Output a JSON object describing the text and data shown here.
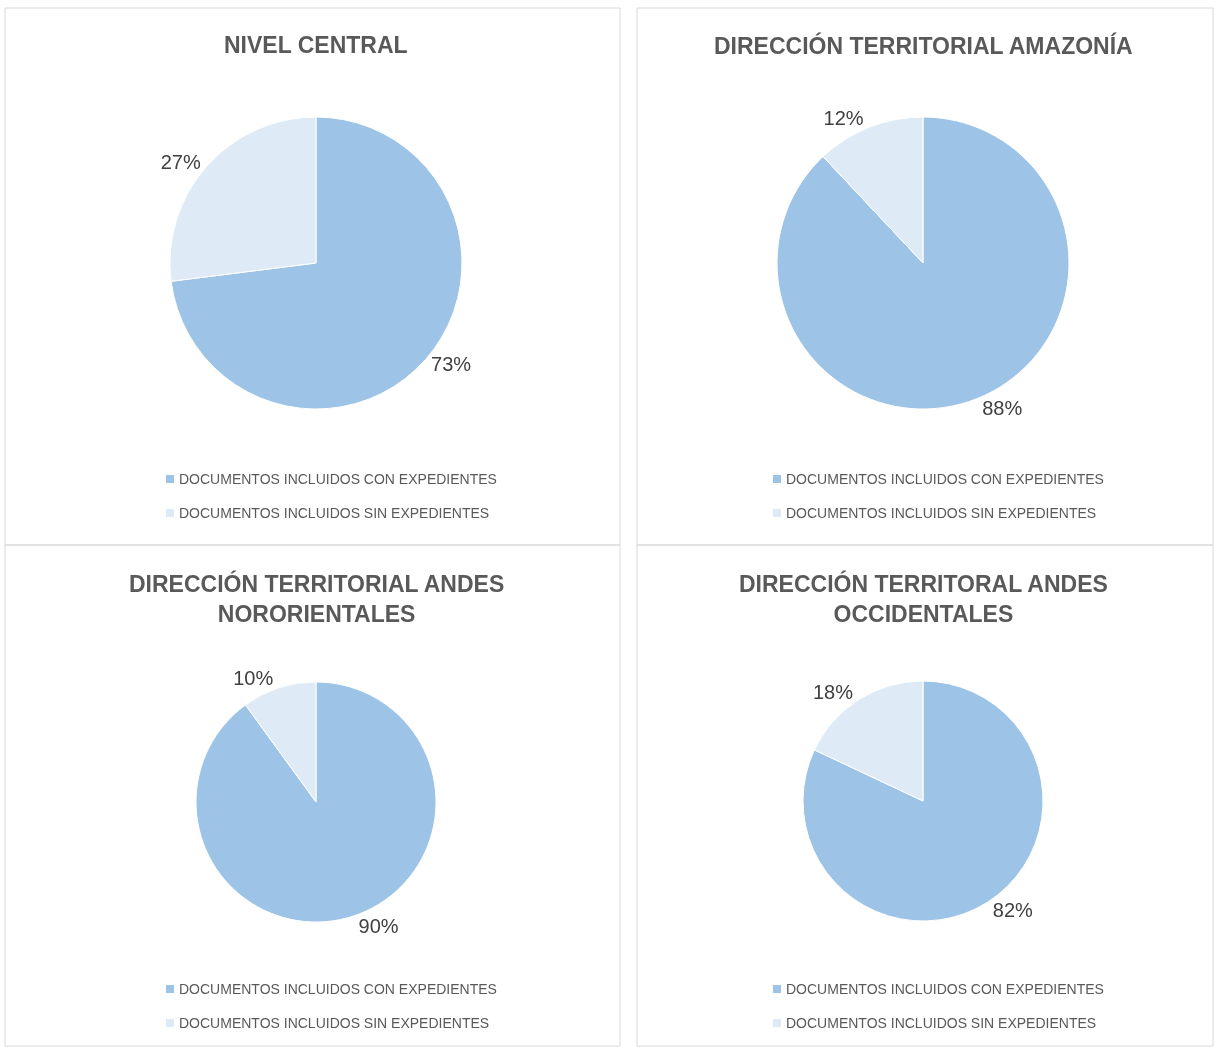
{
  "chart_data": [
    {
      "type": "pie",
      "title": "NIVEL CENTRAL",
      "categories": [
        "DOCUMENTOS INCLUIDOS CON EXPEDIENTES",
        "DOCUMENTOS INCLUIDOS SIN EXPEDIENTES"
      ],
      "values": [
        73,
        27
      ],
      "value_labels": [
        "73%",
        "27%"
      ],
      "colors": [
        "#9dc3e6",
        "#deebf7"
      ],
      "legend": "bottom"
    },
    {
      "type": "pie",
      "title": "DIRECCIÓN TERRITORIAL AMAZONÍA",
      "categories": [
        "DOCUMENTOS INCLUIDOS CON EXPEDIENTES",
        "DOCUMENTOS INCLUIDOS SIN EXPEDIENTES"
      ],
      "values": [
        88,
        12
      ],
      "value_labels": [
        "88%",
        "12%"
      ],
      "colors": [
        "#9dc3e6",
        "#deebf7"
      ],
      "legend": "bottom"
    },
    {
      "type": "pie",
      "title": "DIRECCIÓN TERRITORIAL ANDES NORORIENTALES",
      "categories": [
        "DOCUMENTOS INCLUIDOS CON EXPEDIENTES",
        "DOCUMENTOS INCLUIDOS SIN EXPEDIENTES"
      ],
      "values": [
        90,
        10
      ],
      "value_labels": [
        "90%",
        "10%"
      ],
      "colors": [
        "#9dc3e6",
        "#deebf7"
      ],
      "legend": "bottom"
    },
    {
      "type": "pie",
      "title": "DIRECCIÓN TERRITORAL ANDES OCCIDENTALES",
      "categories": [
        "DOCUMENTOS INCLUIDOS CON EXPEDIENTES",
        "DOCUMENTOS INCLUIDOS SIN EXPEDIENTES"
      ],
      "values": [
        82,
        18
      ],
      "value_labels": [
        "82%",
        "18%"
      ],
      "colors": [
        "#9dc3e6",
        "#deebf7"
      ],
      "legend": "bottom"
    }
  ]
}
